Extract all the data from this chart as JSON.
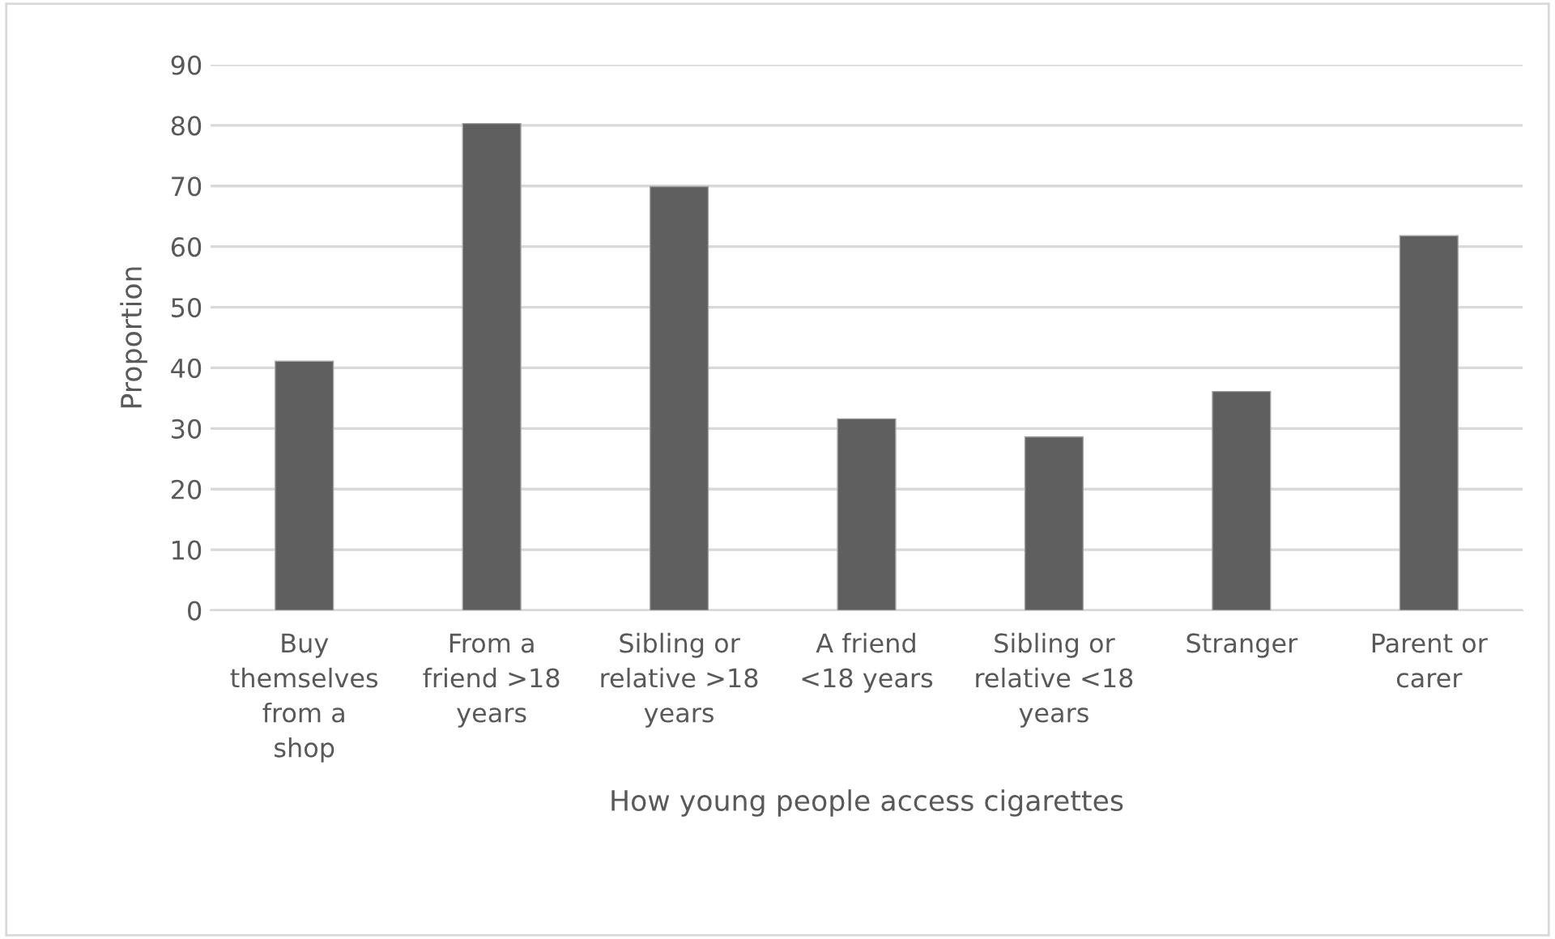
{
  "chart_data": {
    "type": "bar",
    "xlabel": "How young people access cigarettes",
    "ylabel": "Proportion",
    "categories": [
      "Buy\nthemselves\nfrom a\nshop",
      "From a\nfriend >18\nyears",
      "Sibling or\nrelative >18\nyears",
      "A friend\n<18 years",
      "Sibling or\nrelative <18\nyears",
      "Stranger",
      "Parent or\ncarer"
    ],
    "values": [
      41.1,
      80.3,
      69.9,
      31.6,
      28.6,
      36.1,
      61.8
    ],
    "color": "#5f5f5f",
    "ylim": [
      0,
      90
    ],
    "yticks": [
      0,
      10,
      20,
      30,
      40,
      50,
      60,
      70,
      80,
      90
    ],
    "grid": "y",
    "legend": false
  }
}
